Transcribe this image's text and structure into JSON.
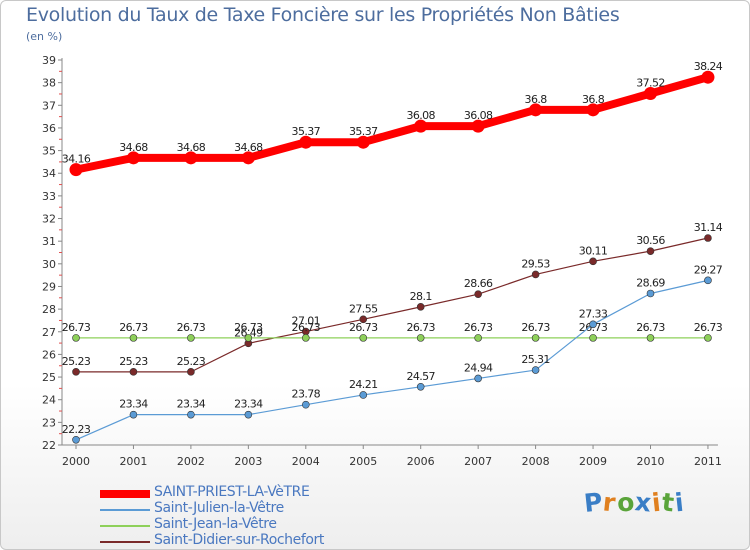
{
  "header": {
    "title": "Evolution du Taux de Taxe Foncière sur les Propriétés Non Bâties",
    "unit": "(en %)"
  },
  "logo": {
    "text": "Proxiti",
    "letter_colors": [
      "#3a7ec6",
      "#e0801f",
      "#5aa43a",
      "#3a7ec6",
      "#e0801f",
      "#5aa43a",
      "#3a7ec6"
    ]
  },
  "chart_data": {
    "type": "line",
    "title": "Evolution du Taux de Taxe Foncière sur les Propriétés Non Bâties",
    "ylabel": "(en %)",
    "xlabel": "",
    "categories": [
      "2000",
      "2001",
      "2002",
      "2003",
      "2004",
      "2005",
      "2006",
      "2007",
      "2008",
      "2009",
      "2010",
      "2011"
    ],
    "ylim": [
      22,
      39
    ],
    "yticks": [
      "22",
      "23",
      "24",
      "25",
      "26",
      "27",
      "28",
      "29",
      "30",
      "31",
      "32",
      "33",
      "34",
      "35",
      "36",
      "37",
      "38",
      "39"
    ],
    "grid": false,
    "legend_position": "bottom",
    "series": [
      {
        "name": "SAINT-PRIEST-LA-VèTRE",
        "color": "#ff0000",
        "emphasis": "thick",
        "values": [
          34.16,
          34.68,
          34.68,
          34.68,
          35.37,
          35.37,
          36.08,
          36.08,
          36.8,
          36.8,
          37.52,
          38.24
        ],
        "labels": [
          "34.16",
          "34.68",
          "34.68",
          "34.68",
          "35.37",
          "35.37",
          "36.08",
          "36.08",
          "36.8",
          "36.8",
          "37.52",
          "38.24"
        ]
      },
      {
        "name": "Saint-Julien-la-Vêtre",
        "color": "#5b9bd5",
        "emphasis": "thin",
        "values": [
          22.23,
          23.34,
          23.34,
          23.34,
          23.78,
          24.21,
          24.57,
          24.94,
          25.31,
          27.33,
          28.69,
          29.27
        ],
        "labels": [
          "22.23",
          "23.34",
          "23.34",
          "23.34",
          "23.78",
          "24.21",
          "24.57",
          "24.94",
          "25.31",
          "27.33",
          "28.69",
          "29.27"
        ]
      },
      {
        "name": "Saint-Jean-la-Vêtre",
        "color": "#8ed05a",
        "emphasis": "thin",
        "values": [
          26.73,
          26.73,
          26.73,
          26.73,
          26.73,
          26.73,
          26.73,
          26.73,
          26.73,
          26.73,
          26.73,
          26.73
        ],
        "labels": [
          "26.73",
          "26.73",
          "26.73",
          "26.73",
          "26.73",
          "26.73",
          "26.73",
          "26.73",
          "26.73",
          "26.73",
          "26.73",
          "26.73"
        ]
      },
      {
        "name": "Saint-Didier-sur-Rochefort",
        "color": "#7a2a2a",
        "emphasis": "thin",
        "values": [
          25.23,
          25.23,
          25.23,
          26.49,
          27.01,
          27.55,
          28.1,
          28.66,
          29.53,
          30.11,
          30.56,
          31.14
        ],
        "labels": [
          "25.23",
          "25.23",
          "25.23",
          "26.49",
          "27.01",
          "27.55",
          "28.1",
          "28.66",
          "29.53",
          "30.11",
          "30.56",
          "31.14"
        ]
      }
    ]
  }
}
